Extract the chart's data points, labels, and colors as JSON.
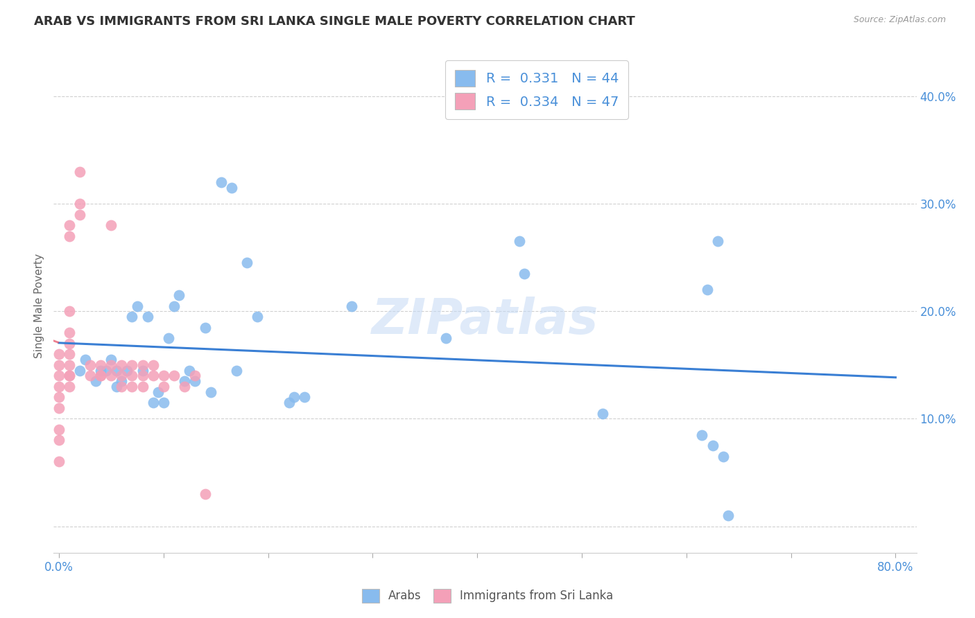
{
  "title": "ARAB VS IMMIGRANTS FROM SRI LANKA SINGLE MALE POVERTY CORRELATION CHART",
  "source": "Source: ZipAtlas.com",
  "ylabel": "Single Male Poverty",
  "watermark": "ZIPatlas",
  "legend_arab": {
    "R": 0.331,
    "N": 44
  },
  "legend_sri_lanka": {
    "R": 0.334,
    "N": 47
  },
  "ytick_vals": [
    0.0,
    0.1,
    0.2,
    0.3,
    0.4
  ],
  "ytick_labels": [
    "0.0%",
    "10.0%",
    "20.0%",
    "30.0%",
    "40.0%"
  ],
  "xlim": [
    -0.005,
    0.82
  ],
  "ylim": [
    -0.025,
    0.435
  ],
  "arab_color": "#88bbee",
  "sri_lanka_color": "#f4a0b8",
  "trend_arab_color": "#3a7fd4",
  "trend_sri_lanka_color": "#e8546a",
  "background_color": "#ffffff",
  "grid_color": "#d0d0d0",
  "title_color": "#333333",
  "axis_tick_color": "#4a90d9",
  "arab_x": [
    0.02,
    0.025,
    0.035,
    0.04,
    0.045,
    0.05,
    0.055,
    0.055,
    0.06,
    0.065,
    0.07,
    0.075,
    0.08,
    0.085,
    0.09,
    0.095,
    0.1,
    0.105,
    0.11,
    0.115,
    0.12,
    0.125,
    0.13,
    0.14,
    0.145,
    0.155,
    0.165,
    0.17,
    0.18,
    0.19,
    0.22,
    0.225,
    0.235,
    0.28,
    0.37,
    0.44,
    0.445,
    0.52,
    0.615,
    0.62,
    0.625,
    0.63,
    0.635,
    0.64
  ],
  "arab_y": [
    0.145,
    0.155,
    0.135,
    0.145,
    0.145,
    0.155,
    0.13,
    0.145,
    0.135,
    0.145,
    0.195,
    0.205,
    0.145,
    0.195,
    0.115,
    0.125,
    0.115,
    0.175,
    0.205,
    0.215,
    0.135,
    0.145,
    0.135,
    0.185,
    0.125,
    0.32,
    0.315,
    0.145,
    0.245,
    0.195,
    0.115,
    0.12,
    0.12,
    0.205,
    0.175,
    0.265,
    0.235,
    0.105,
    0.085,
    0.22,
    0.075,
    0.265,
    0.065,
    0.01
  ],
  "sri_lanka_x": [
    0.0,
    0.0,
    0.0,
    0.0,
    0.0,
    0.0,
    0.0,
    0.0,
    0.0,
    0.01,
    0.01,
    0.01,
    0.01,
    0.01,
    0.01,
    0.01,
    0.01,
    0.01,
    0.01,
    0.02,
    0.02,
    0.02,
    0.03,
    0.03,
    0.04,
    0.04,
    0.04,
    0.05,
    0.05,
    0.05,
    0.06,
    0.06,
    0.06,
    0.07,
    0.07,
    0.07,
    0.08,
    0.08,
    0.08,
    0.09,
    0.09,
    0.1,
    0.1,
    0.11,
    0.12,
    0.13,
    0.14
  ],
  "sri_lanka_y": [
    0.06,
    0.08,
    0.09,
    0.11,
    0.12,
    0.13,
    0.14,
    0.15,
    0.16,
    0.13,
    0.14,
    0.14,
    0.15,
    0.16,
    0.17,
    0.18,
    0.2,
    0.27,
    0.28,
    0.29,
    0.3,
    0.33,
    0.14,
    0.15,
    0.14,
    0.14,
    0.15,
    0.14,
    0.15,
    0.28,
    0.13,
    0.14,
    0.15,
    0.13,
    0.14,
    0.15,
    0.13,
    0.14,
    0.15,
    0.14,
    0.15,
    0.13,
    0.14,
    0.14,
    0.13,
    0.14,
    0.03
  ]
}
